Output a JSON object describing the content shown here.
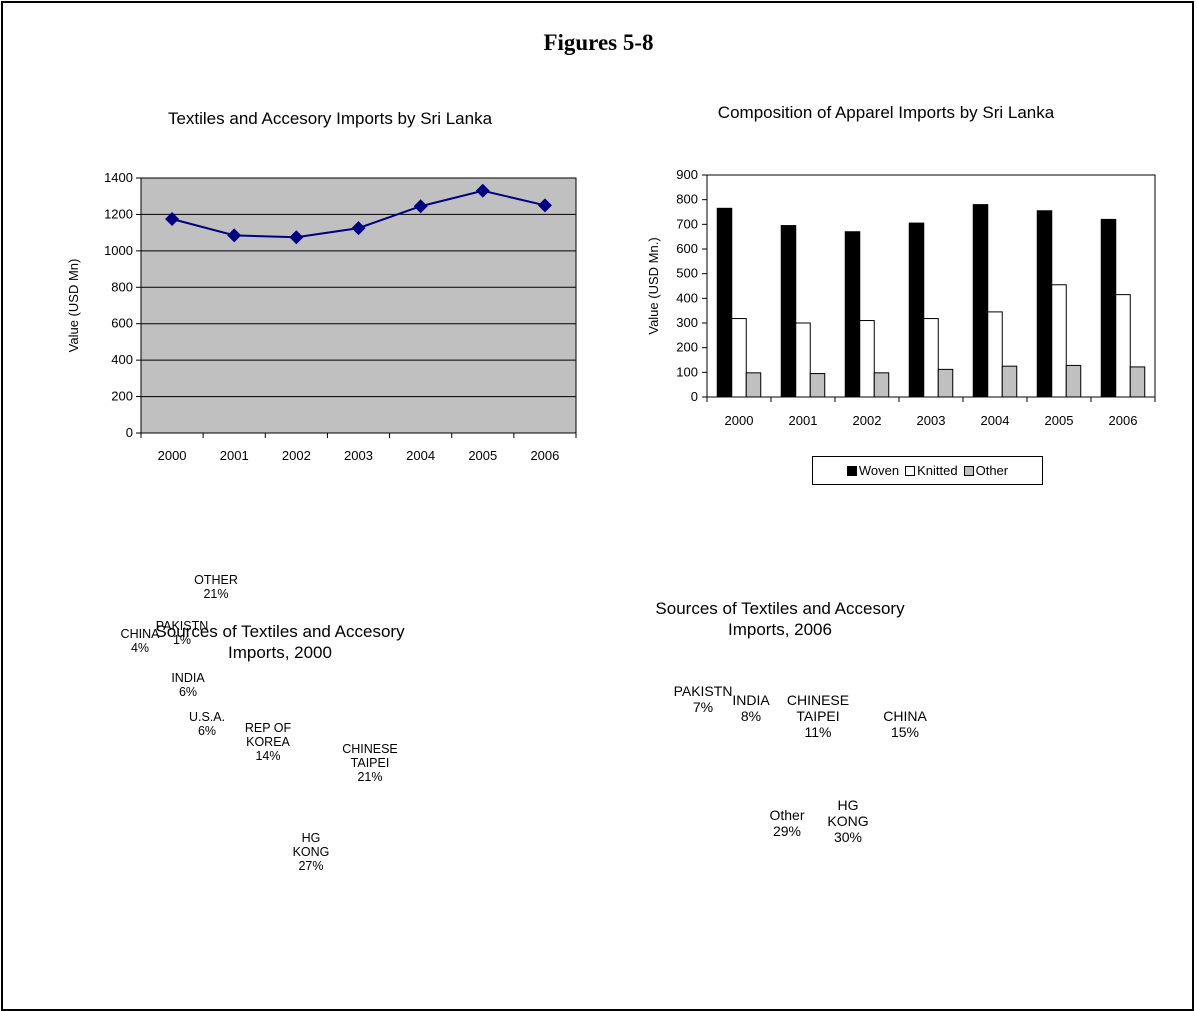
{
  "page": {
    "title": "Figures 5-8"
  },
  "colors": {
    "line": "#000080",
    "plot_bg": "#c0c0c0",
    "woven": "#000000",
    "knitted": "#ffffff",
    "other": "#c0c0c0"
  },
  "chart_data": [
    {
      "type": "line",
      "title": "Textiles and Accesory Imports by Sri Lanka",
      "ylabel": "Value (USD Mn)",
      "x": [
        "2000",
        "2001",
        "2002",
        "2003",
        "2004",
        "2005",
        "2006"
      ],
      "values": [
        1175,
        1085,
        1075,
        1125,
        1245,
        1330,
        1250
      ],
      "ylim": [
        0,
        1400
      ],
      "yticks": [
        "0",
        "200",
        "400",
        "600",
        "800",
        "1000",
        "1200",
        "1400"
      ],
      "grid": "horizontal"
    },
    {
      "type": "bar",
      "title": "Composition of Apparel Imports by Sri Lanka",
      "ylabel": "Value (USD Mn.)",
      "categories": [
        "2000",
        "2001",
        "2002",
        "2003",
        "2004",
        "2005",
        "2006"
      ],
      "series": [
        {
          "name": "Woven",
          "values": [
            765,
            695,
            670,
            705,
            780,
            755,
            720
          ]
        },
        {
          "name": "Knitted",
          "values": [
            318,
            300,
            310,
            318,
            345,
            455,
            415
          ]
        },
        {
          "name": "Other",
          "values": [
            98,
            95,
            98,
            112,
            125,
            128,
            122
          ]
        }
      ],
      "ylim": [
        0,
        900
      ],
      "yticks": [
        "0",
        "100",
        "200",
        "300",
        "400",
        "500",
        "600",
        "700",
        "800",
        "900"
      ],
      "legend": "bottom"
    },
    {
      "type": "pie",
      "title_lines": [
        "Sources of Textiles and Accesory",
        "Imports, 2000"
      ],
      "slices": [
        {
          "label": [
            "HG",
            "KONG",
            "27%"
          ],
          "value": 27
        },
        {
          "label": [
            "CHINESE",
            "TAIPEI",
            "21%"
          ],
          "value": 21
        },
        {
          "label": [
            "REP OF",
            "KOREA",
            "14%"
          ],
          "value": 14
        },
        {
          "label": [
            "U.S.A.",
            "6%"
          ],
          "value": 6
        },
        {
          "label": [
            "INDIA",
            "6%"
          ],
          "value": 6
        },
        {
          "label": [
            "CHINA",
            "4%"
          ],
          "value": 4
        },
        {
          "label": [
            "PAKISTN",
            "1%"
          ],
          "value": 1
        },
        {
          "label": [
            "OTHER",
            "21%"
          ],
          "value": 21
        }
      ]
    },
    {
      "type": "pie",
      "title_lines": [
        "Sources of Textiles and Accesory",
        "Imports, 2006"
      ],
      "slices": [
        {
          "label": [
            "HG",
            "KONG",
            "30%"
          ],
          "value": 30
        },
        {
          "label": [
            "CHINA",
            "15%"
          ],
          "value": 15
        },
        {
          "label": [
            "CHINESE",
            "TAIPEI",
            "11%"
          ],
          "value": 11
        },
        {
          "label": [
            "INDIA",
            "8%"
          ],
          "value": 8
        },
        {
          "label": [
            "PAKISTN",
            "7%"
          ],
          "value": 7
        },
        {
          "label": [
            "Other",
            "29%"
          ],
          "value": 29
        }
      ]
    }
  ]
}
